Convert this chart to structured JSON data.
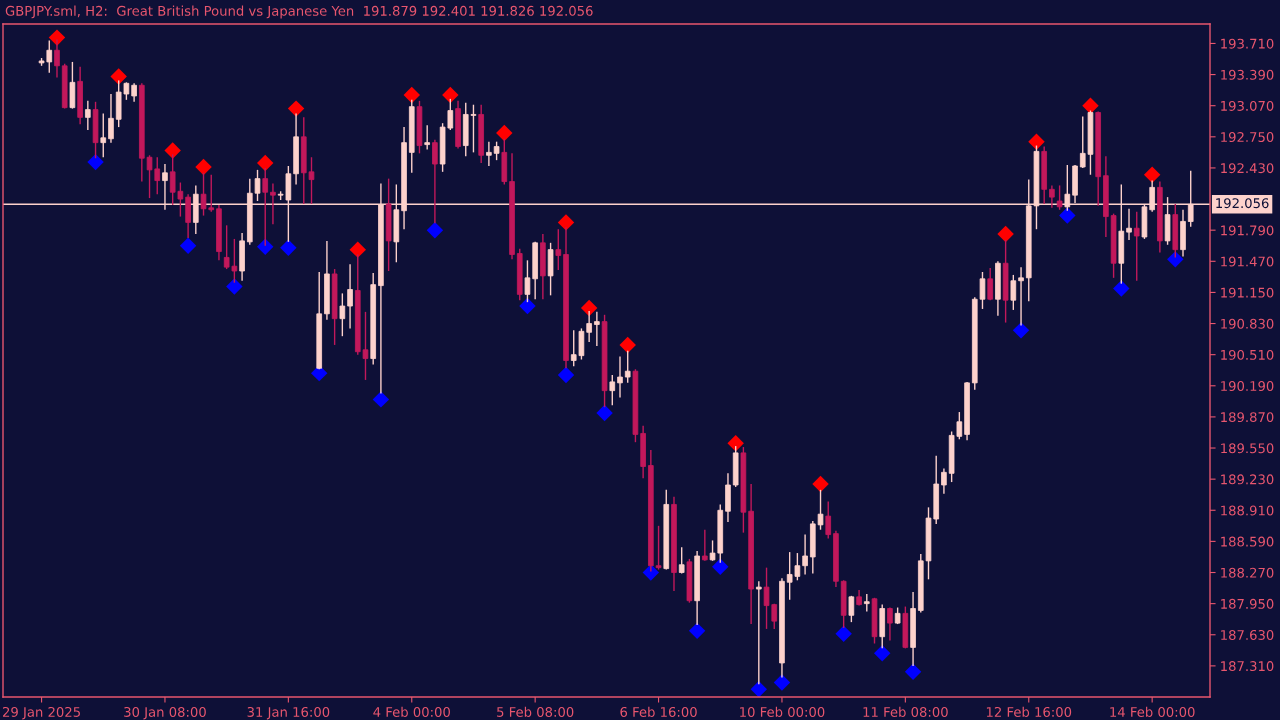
{
  "chart_data": {
    "type": "candlestick",
    "title": "GBPJPY.sml, H2:  Great British Pound vs Japanese Yen  191.879 192.401 191.826 192.056",
    "categories": [
      "29 Jan 2025",
      null,
      null,
      null,
      null,
      null,
      null,
      null,
      null,
      null,
      null,
      null,
      null,
      null,
      null,
      null,
      "30 Jan 08:00",
      null,
      null,
      null,
      null,
      null,
      null,
      null,
      null,
      null,
      null,
      null,
      null,
      null,
      null,
      null,
      "31 Jan 16:00",
      null,
      null,
      null,
      null,
      null,
      null,
      null,
      null,
      null,
      null,
      null,
      null,
      null,
      null,
      null,
      "4 Feb 00:00",
      null,
      null,
      null,
      null,
      null,
      null,
      null,
      null,
      null,
      null,
      null,
      null,
      null,
      null,
      null,
      "5 Feb 08:00",
      null,
      null,
      null,
      null,
      null,
      null,
      null,
      null,
      null,
      null,
      null,
      null,
      null,
      null,
      null,
      "6 Feb 16:00",
      null,
      null,
      null,
      null,
      null,
      null,
      null,
      null,
      null,
      null,
      null,
      null,
      null,
      null,
      null,
      "10 Feb 00:00",
      null,
      null,
      null,
      null,
      null,
      null,
      null,
      null,
      null,
      null,
      null,
      null,
      null,
      null,
      null,
      "11 Feb 08:00",
      null,
      null,
      null,
      null,
      null,
      null,
      null,
      null,
      null,
      null,
      null,
      null,
      null,
      null,
      null,
      "12 Feb 16:00",
      null,
      null,
      null,
      null,
      null,
      null,
      null,
      null,
      null,
      null,
      null,
      null,
      null,
      null,
      null,
      "14 Feb 00:00",
      null,
      null,
      null,
      null,
      null
    ],
    "ohlc": [
      [
        193.51,
        193.56,
        193.48,
        193.53
      ],
      [
        193.52,
        193.74,
        193.41,
        193.64
      ],
      [
        193.64,
        193.75,
        193.36,
        193.48
      ],
      [
        193.48,
        193.5,
        193.04,
        193.05
      ],
      [
        193.05,
        193.52,
        193.04,
        193.31
      ],
      [
        193.32,
        193.47,
        192.88,
        192.95
      ],
      [
        192.95,
        193.12,
        192.82,
        193.03
      ],
      [
        193.03,
        193.11,
        192.53,
        192.69
      ],
      [
        192.69,
        192.99,
        192.54,
        192.74
      ],
      [
        192.73,
        193.19,
        192.69,
        192.94
      ],
      [
        192.93,
        193.33,
        192.85,
        193.21
      ],
      [
        193.19,
        193.31,
        193.13,
        193.3
      ],
      [
        193.17,
        193.3,
        193.11,
        193.28
      ],
      [
        193.28,
        193.3,
        192.29,
        192.53
      ],
      [
        192.54,
        192.56,
        192.12,
        192.41
      ],
      [
        192.42,
        192.54,
        192.16,
        192.3
      ],
      [
        192.3,
        192.47,
        192.0,
        192.38
      ],
      [
        192.39,
        192.57,
        192.05,
        192.18
      ],
      [
        192.19,
        192.28,
        191.93,
        192.11
      ],
      [
        192.13,
        192.16,
        191.71,
        191.87
      ],
      [
        191.87,
        192.25,
        191.75,
        192.16
      ],
      [
        192.16,
        192.38,
        191.94,
        192.01
      ],
      [
        192.02,
        192.36,
        191.98,
        192.0
      ],
      [
        192.01,
        192.05,
        191.48,
        191.57
      ],
      [
        191.51,
        191.84,
        191.39,
        191.41
      ],
      [
        191.42,
        191.7,
        191.25,
        191.37
      ],
      [
        191.37,
        191.76,
        191.27,
        191.68
      ],
      [
        191.67,
        192.32,
        191.64,
        192.17
      ],
      [
        192.17,
        192.41,
        192.09,
        192.32
      ],
      [
        192.32,
        192.43,
        191.63,
        192.18
      ],
      [
        192.18,
        192.27,
        191.85,
        192.15
      ],
      [
        192.15,
        192.19,
        192.1,
        192.16
      ],
      [
        192.1,
        192.45,
        191.67,
        192.37
      ],
      [
        192.37,
        192.99,
        192.26,
        192.75
      ],
      [
        192.75,
        192.95,
        192.06,
        192.38
      ],
      [
        192.39,
        192.54,
        192.06,
        192.31
      ],
      [
        190.37,
        191.36,
        190.36,
        190.93
      ],
      [
        190.93,
        191.68,
        190.87,
        191.34
      ],
      [
        191.34,
        191.39,
        190.61,
        190.88
      ],
      [
        190.88,
        191.14,
        190.7,
        191.01
      ],
      [
        191.01,
        191.44,
        190.78,
        191.18
      ],
      [
        191.17,
        191.54,
        190.51,
        190.54
      ],
      [
        190.56,
        190.95,
        190.25,
        190.47
      ],
      [
        190.47,
        191.35,
        190.41,
        191.23
      ],
      [
        191.22,
        192.27,
        190.11,
        192.05
      ],
      [
        192.06,
        192.32,
        191.37,
        191.68
      ],
      [
        191.67,
        192.26,
        191.46,
        192.0
      ],
      [
        191.99,
        192.85,
        191.8,
        192.69
      ],
      [
        192.59,
        193.13,
        192.38,
        193.06
      ],
      [
        193.06,
        193.12,
        192.58,
        192.66
      ],
      [
        192.67,
        192.87,
        192.62,
        192.69
      ],
      [
        192.69,
        192.72,
        191.86,
        192.47
      ],
      [
        192.47,
        192.89,
        192.39,
        192.85
      ],
      [
        192.84,
        193.14,
        192.82,
        193.02
      ],
      [
        193.04,
        193.12,
        192.63,
        192.65
      ],
      [
        192.66,
        193.1,
        192.55,
        192.98
      ],
      [
        192.97,
        193.08,
        192.59,
        192.98
      ],
      [
        192.98,
        193.08,
        192.48,
        192.56
      ],
      [
        192.56,
        192.7,
        192.45,
        192.59
      ],
      [
        192.58,
        192.7,
        192.51,
        192.65
      ],
      [
        192.59,
        192.73,
        192.26,
        192.29
      ],
      [
        192.29,
        192.58,
        191.49,
        191.54
      ],
      [
        191.55,
        191.6,
        191.07,
        191.13
      ],
      [
        191.13,
        191.48,
        191.05,
        191.3
      ],
      [
        191.29,
        191.67,
        191.08,
        191.66
      ],
      [
        191.66,
        191.75,
        191.08,
        191.32
      ],
      [
        191.32,
        191.66,
        191.12,
        191.59
      ],
      [
        191.59,
        191.8,
        191.38,
        191.53
      ],
      [
        191.54,
        191.82,
        190.37,
        190.45
      ],
      [
        190.45,
        190.76,
        190.39,
        190.51
      ],
      [
        190.5,
        190.78,
        190.46,
        190.75
      ],
      [
        190.74,
        190.96,
        190.64,
        190.83
      ],
      [
        190.82,
        190.95,
        190.6,
        190.85
      ],
      [
        190.85,
        190.92,
        189.97,
        190.14
      ],
      [
        190.14,
        190.3,
        189.99,
        190.23
      ],
      [
        190.22,
        190.49,
        190.07,
        190.28
      ],
      [
        190.28,
        190.55,
        190.22,
        190.34
      ],
      [
        190.34,
        190.36,
        189.61,
        189.69
      ],
      [
        189.7,
        189.78,
        189.24,
        189.36
      ],
      [
        189.37,
        189.53,
        188.28,
        188.34
      ],
      [
        188.34,
        188.75,
        188.3,
        188.32
      ],
      [
        188.31,
        189.12,
        188.3,
        188.97
      ],
      [
        188.97,
        189.05,
        188.08,
        188.27
      ],
      [
        188.27,
        188.53,
        188.26,
        188.35
      ],
      [
        188.38,
        188.41,
        187.96,
        187.98
      ],
      [
        187.98,
        188.49,
        187.73,
        188.44
      ],
      [
        188.44,
        188.71,
        188.39,
        188.4
      ],
      [
        188.4,
        188.6,
        188.39,
        188.47
      ],
      [
        188.47,
        188.97,
        188.37,
        188.91
      ],
      [
        188.9,
        189.29,
        188.79,
        189.17
      ],
      [
        189.17,
        189.57,
        189.15,
        189.5
      ],
      [
        189.5,
        189.56,
        188.68,
        188.89
      ],
      [
        188.9,
        189.18,
        187.74,
        188.1
      ],
      [
        188.1,
        188.18,
        187.12,
        188.12
      ],
      [
        188.12,
        188.32,
        187.69,
        187.93
      ],
      [
        187.94,
        187.95,
        187.69,
        187.77
      ],
      [
        187.34,
        188.21,
        187.19,
        188.18
      ],
      [
        188.17,
        188.48,
        187.99,
        188.25
      ],
      [
        188.23,
        188.47,
        188.19,
        188.34
      ],
      [
        188.34,
        188.66,
        188.25,
        188.44
      ],
      [
        188.43,
        188.8,
        188.26,
        188.77
      ],
      [
        188.76,
        189.12,
        188.71,
        188.87
      ],
      [
        188.85,
        189.0,
        188.62,
        188.66
      ],
      [
        188.67,
        188.7,
        188.12,
        188.18
      ],
      [
        188.18,
        188.19,
        187.7,
        187.83
      ],
      [
        187.83,
        188.03,
        187.76,
        188.02
      ],
      [
        188.02,
        188.09,
        187.93,
        187.94
      ],
      [
        187.95,
        188.05,
        187.87,
        187.97
      ],
      [
        188.0,
        188.01,
        187.54,
        187.61
      ],
      [
        187.61,
        187.94,
        187.49,
        187.9
      ],
      [
        187.9,
        187.91,
        187.57,
        187.75
      ],
      [
        187.75,
        187.91,
        187.74,
        187.85
      ],
      [
        187.85,
        187.92,
        187.49,
        187.5
      ],
      [
        187.5,
        188.07,
        187.31,
        187.9
      ],
      [
        187.88,
        188.46,
        187.86,
        188.39
      ],
      [
        188.39,
        188.94,
        188.2,
        188.83
      ],
      [
        188.82,
        189.47,
        188.77,
        189.18
      ],
      [
        189.17,
        189.34,
        189.08,
        189.3
      ],
      [
        189.29,
        189.72,
        189.2,
        189.68
      ],
      [
        189.67,
        189.92,
        189.64,
        189.82
      ],
      [
        189.69,
        190.23,
        189.63,
        190.22
      ],
      [
        190.22,
        191.1,
        190.15,
        191.08
      ],
      [
        191.08,
        191.36,
        190.98,
        191.29
      ],
      [
        191.29,
        191.4,
        191.07,
        191.08
      ],
      [
        191.08,
        191.47,
        190.91,
        191.45
      ],
      [
        191.45,
        191.69,
        190.84,
        191.07
      ],
      [
        191.07,
        191.33,
        190.97,
        191.27
      ],
      [
        191.27,
        191.41,
        190.81,
        191.3
      ],
      [
        191.3,
        192.31,
        191.06,
        192.04
      ],
      [
        192.04,
        192.66,
        191.8,
        192.6
      ],
      [
        192.6,
        192.65,
        192.06,
        192.21
      ],
      [
        192.21,
        192.25,
        192.02,
        192.13
      ],
      [
        192.09,
        192.25,
        192.0,
        192.03
      ],
      [
        192.03,
        192.46,
        191.99,
        192.16
      ],
      [
        192.15,
        192.46,
        192.07,
        192.45
      ],
      [
        192.44,
        192.96,
        192.43,
        192.58
      ],
      [
        192.57,
        193.02,
        192.36,
        193.0
      ],
      [
        193.0,
        193.01,
        192.04,
        192.34
      ],
      [
        192.35,
        192.55,
        191.72,
        191.93
      ],
      [
        191.94,
        191.96,
        191.3,
        191.45
      ],
      [
        191.45,
        192.26,
        191.24,
        191.78
      ],
      [
        191.77,
        192.01,
        191.69,
        191.81
      ],
      [
        191.81,
        191.98,
        191.27,
        191.73
      ],
      [
        191.72,
        192.05,
        191.7,
        192.03
      ],
      [
        192.0,
        192.3,
        191.98,
        192.23
      ],
      [
        192.23,
        192.29,
        191.56,
        191.68
      ],
      [
        191.68,
        192.13,
        191.64,
        191.95
      ],
      [
        191.95,
        192.06,
        191.51,
        191.59
      ],
      [
        191.59,
        192.0,
        191.52,
        191.88
      ],
      [
        191.879,
        192.401,
        191.826,
        192.056
      ]
    ],
    "colors": [
      "#fdd2cc",
      "#fdd2cc",
      "#c2185b",
      "#c2185b",
      "#fdd2cc",
      "#c2185b",
      "#fdd2cc",
      "#c2185b",
      "#fdd2cc",
      "#fdd2cc",
      "#fdd2cc",
      "#fdd2cc",
      "#fdd2cc",
      "#c2185b",
      "#c2185b",
      "#c2185b",
      "#fdd2cc",
      "#c2185b",
      "#c2185b",
      "#c2185b",
      "#fdd2cc",
      "#c2185b",
      "#c2185b",
      "#c2185b",
      "#c2185b",
      "#c2185b",
      "#fdd2cc",
      "#fdd2cc",
      "#fdd2cc",
      "#c2185b",
      "#c2185b",
      "#fdd2cc",
      "#fdd2cc",
      "#fdd2cc",
      "#c2185b",
      "#c2185b",
      "#fdd2cc",
      "#fdd2cc",
      "#c2185b",
      "#fdd2cc",
      "#fdd2cc",
      "#c2185b",
      "#c2185b",
      "#fdd2cc",
      "#fdd2cc",
      "#c2185b",
      "#fdd2cc",
      "#fdd2cc",
      "#fdd2cc",
      "#c2185b",
      "#fdd2cc",
      "#c2185b",
      "#fdd2cc",
      "#fdd2cc",
      "#c2185b",
      "#fdd2cc",
      "#fdd2cc",
      "#c2185b",
      "#fdd2cc",
      "#fdd2cc",
      "#c2185b",
      "#c2185b",
      "#c2185b",
      "#fdd2cc",
      "#fdd2cc",
      "#c2185b",
      "#fdd2cc",
      "#c2185b",
      "#c2185b",
      "#fdd2cc",
      "#fdd2cc",
      "#fdd2cc",
      "#fdd2cc",
      "#c2185b",
      "#fdd2cc",
      "#fdd2cc",
      "#fdd2cc",
      "#c2185b",
      "#c2185b",
      "#c2185b",
      "#c2185b",
      "#fdd2cc",
      "#c2185b",
      "#fdd2cc",
      "#c2185b",
      "#fdd2cc",
      "#c2185b",
      "#fdd2cc",
      "#fdd2cc",
      "#fdd2cc",
      "#fdd2cc",
      "#c2185b",
      "#c2185b",
      "#fdd2cc",
      "#c2185b",
      "#c2185b",
      "#fdd2cc",
      "#fdd2cc",
      "#fdd2cc",
      "#fdd2cc",
      "#fdd2cc",
      "#fdd2cc",
      "#c2185b",
      "#c2185b",
      "#c2185b",
      "#fdd2cc",
      "#c2185b",
      "#fdd2cc",
      "#c2185b",
      "#fdd2cc",
      "#c2185b",
      "#fdd2cc",
      "#c2185b",
      "#fdd2cc",
      "#fdd2cc",
      "#fdd2cc",
      "#fdd2cc",
      "#fdd2cc",
      "#fdd2cc",
      "#fdd2cc",
      "#fdd2cc",
      "#fdd2cc",
      "#fdd2cc",
      "#c2185b",
      "#fdd2cc",
      "#c2185b",
      "#fdd2cc",
      "#fdd2cc",
      "#fdd2cc",
      "#fdd2cc",
      "#c2185b",
      "#c2185b",
      "#c2185b",
      "#fdd2cc",
      "#fdd2cc",
      "#fdd2cc",
      "#fdd2cc",
      "#c2185b",
      "#c2185b",
      "#c2185b",
      "#fdd2cc",
      "#fdd2cc",
      "#c2185b",
      "#fdd2cc",
      "#fdd2cc",
      "#c2185b",
      "#fdd2cc",
      "#c2185b",
      "#fdd2cc",
      "#fdd2cc"
    ],
    "series": [
      {
        "type": "scatter",
        "color": "#ff0000",
        "values": [
          null,
          null,
          193.77,
          null,
          null,
          null,
          null,
          null,
          null,
          null,
          193.37,
          null,
          null,
          null,
          null,
          null,
          null,
          192.61,
          null,
          null,
          null,
          192.44,
          null,
          null,
          null,
          null,
          null,
          null,
          null,
          192.48,
          null,
          null,
          null,
          193.04,
          null,
          null,
          null,
          null,
          null,
          null,
          null,
          191.59,
          null,
          null,
          null,
          null,
          null,
          null,
          193.18,
          null,
          null,
          null,
          null,
          193.18,
          null,
          null,
          null,
          null,
          null,
          null,
          192.79,
          null,
          null,
          null,
          null,
          null,
          null,
          null,
          191.87,
          null,
          null,
          190.99,
          null,
          null,
          null,
          null,
          190.61,
          null,
          null,
          null,
          null,
          null,
          null,
          null,
          null,
          null,
          null,
          null,
          null,
          null,
          189.6,
          null,
          null,
          null,
          null,
          null,
          null,
          null,
          null,
          null,
          null,
          189.18,
          null,
          null,
          null,
          null,
          null,
          null,
          null,
          null,
          null,
          null,
          null,
          null,
          null,
          null,
          null,
          null,
          null,
          null,
          null,
          null,
          null,
          null,
          null,
          191.75,
          null,
          null,
          null,
          192.7,
          null,
          null,
          null,
          null,
          null,
          null,
          193.07,
          null,
          null,
          null,
          null,
          null,
          null,
          null,
          192.36,
          null,
          null,
          null,
          null,
          null
        ]
      },
      {
        "type": "scatter",
        "color": "#0000ff",
        "values": [
          null,
          null,
          null,
          null,
          null,
          null,
          null,
          192.49,
          null,
          null,
          null,
          null,
          null,
          null,
          null,
          null,
          null,
          null,
          null,
          191.63,
          null,
          null,
          null,
          null,
          null,
          191.21,
          null,
          null,
          null,
          191.62,
          null,
          null,
          191.61,
          null,
          null,
          null,
          190.32,
          null,
          null,
          null,
          null,
          null,
          null,
          null,
          190.05,
          null,
          null,
          null,
          null,
          null,
          null,
          191.79,
          null,
          null,
          null,
          null,
          null,
          null,
          null,
          null,
          null,
          null,
          null,
          191.01,
          null,
          null,
          null,
          null,
          190.3,
          null,
          null,
          null,
          null,
          189.91,
          null,
          null,
          null,
          null,
          null,
          188.27,
          null,
          null,
          null,
          null,
          null,
          187.67,
          null,
          null,
          188.33,
          null,
          null,
          null,
          null,
          187.07,
          null,
          null,
          187.14,
          null,
          null,
          null,
          null,
          null,
          null,
          null,
          187.64,
          null,
          null,
          null,
          null,
          187.44,
          null,
          null,
          null,
          187.25,
          null,
          null,
          null,
          null,
          null,
          null,
          null,
          null,
          null,
          null,
          null,
          null,
          null,
          190.76,
          null,
          null,
          null,
          null,
          null,
          191.94,
          null,
          null,
          null,
          null,
          null,
          null,
          191.19,
          null,
          null,
          null,
          null,
          null,
          null,
          191.49,
          null,
          null
        ]
      }
    ],
    "marker": "diamond",
    "ylim": [
      186.99,
      193.91
    ],
    "yticks": [
      {
        "value": 193.71,
        "label": "193.710"
      },
      {
        "value": 193.39,
        "label": "193.390"
      },
      {
        "value": 193.07,
        "label": "193.070"
      },
      {
        "value": 192.75,
        "label": "192.750"
      },
      {
        "value": 192.43,
        "label": "192.430"
      },
      {
        "value": 191.79,
        "label": "191.790"
      },
      {
        "value": 191.47,
        "label": "191.470"
      },
      {
        "value": 191.15,
        "label": "191.150"
      },
      {
        "value": 190.83,
        "label": "190.830"
      },
      {
        "value": 190.51,
        "label": "190.510"
      },
      {
        "value": 190.19,
        "label": "190.190"
      },
      {
        "value": 189.87,
        "label": "189.870"
      },
      {
        "value": 189.55,
        "label": "189.550"
      },
      {
        "value": 189.23,
        "label": "189.230"
      },
      {
        "value": 188.91,
        "label": "188.910"
      },
      {
        "value": 188.59,
        "label": "188.590"
      },
      {
        "value": 188.27,
        "label": "188.270"
      },
      {
        "value": 187.95,
        "label": "187.950"
      },
      {
        "value": 187.63,
        "label": "187.630"
      },
      {
        "value": 187.31,
        "label": "187.310"
      }
    ],
    "ref_lines": [
      {
        "axis": "y",
        "value": 192.056,
        "label": "192.056",
        "color": "#fdd2cc"
      }
    ]
  }
}
